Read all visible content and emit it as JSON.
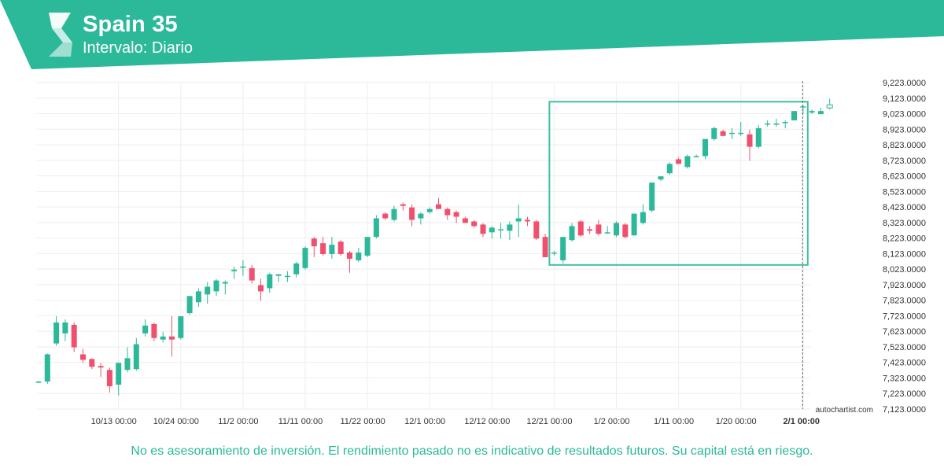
{
  "header": {
    "title": "Spain 35",
    "subtitle": "Intervalo: Diario",
    "brand_color": "#2bb99a",
    "logo_icon": "autochartist-logo-icon"
  },
  "colors": {
    "bull": "#2bb99a",
    "bear": "#f0506e",
    "grid": "#eeeeee",
    "pattern_box": "#3fbfa4",
    "text": "#333333"
  },
  "chart_data": {
    "type": "candlestick",
    "title": "Spain 35",
    "subtitle": "Intervalo: Diario",
    "ylim": [
      7123,
      9223
    ],
    "y_ticks": [
      "9,223.0000",
      "9,123.0000",
      "9,023.0000",
      "8,923.0000",
      "8,823.0000",
      "8,723.0000",
      "8,623.0000",
      "8,523.0000",
      "8,423.0000",
      "8,323.0000",
      "8,223.0000",
      "8,123.0000",
      "8,023.0000",
      "7,923.0000",
      "7,823.0000",
      "7,723.0000",
      "7,623.0000",
      "7,523.0000",
      "7,423.0000",
      "7,323.0000",
      "7,223.0000",
      "7,123.0000"
    ],
    "x_ticks": [
      {
        "label": "10/13 00:00",
        "index": 9
      },
      {
        "label": "10/24 00:00",
        "index": 16
      },
      {
        "label": "11/2 00:00",
        "index": 23
      },
      {
        "label": "11/11 00:00",
        "index": 30
      },
      {
        "label": "11/22 00:00",
        "index": 37
      },
      {
        "label": "12/1 00:00",
        "index": 44
      },
      {
        "label": "12/12 00:00",
        "index": 51
      },
      {
        "label": "12/21 00:00",
        "index": 58
      },
      {
        "label": "1/2 00:00",
        "index": 65
      },
      {
        "label": "1/11 00:00",
        "index": 72
      },
      {
        "label": "1/20 00:00",
        "index": 79
      },
      {
        "label": "2/1 00:00",
        "index": 86,
        "bold": true
      }
    ],
    "current_index": 86,
    "grid": true,
    "candles": [
      [
        7300,
        7305,
        7290,
        7300
      ],
      [
        7300,
        7480,
        7285,
        7475
      ],
      [
        7545,
        7720,
        7530,
        7680
      ],
      [
        7610,
        7700,
        7560,
        7680
      ],
      [
        7665,
        7680,
        7490,
        7520
      ],
      [
        7475,
        7510,
        7420,
        7440
      ],
      [
        7445,
        7450,
        7380,
        7395
      ],
      [
        7400,
        7420,
        7330,
        7390
      ],
      [
        7375,
        7390,
        7230,
        7270
      ],
      [
        7280,
        7420,
        7210,
        7420
      ],
      [
        7375,
        7520,
        7360,
        7450
      ],
      [
        7380,
        7580,
        7370,
        7540
      ],
      [
        7610,
        7700,
        7590,
        7660
      ],
      [
        7670,
        7680,
        7560,
        7580
      ],
      [
        7570,
        7620,
        7550,
        7590
      ],
      [
        7590,
        7720,
        7460,
        7570
      ],
      [
        7580,
        7720,
        7570,
        7720
      ],
      [
        7740,
        7850,
        7730,
        7850
      ],
      [
        7810,
        7900,
        7780,
        7880
      ],
      [
        7860,
        7940,
        7800,
        7910
      ],
      [
        7880,
        7960,
        7850,
        7950
      ],
      [
        7930,
        7950,
        7860,
        7940
      ],
      [
        8010,
        8040,
        7960,
        8020
      ],
      [
        8040,
        8080,
        7980,
        8040
      ],
      [
        8030,
        8050,
        7930,
        7950
      ],
      [
        7920,
        7960,
        7820,
        7880
      ],
      [
        7900,
        8000,
        7870,
        7990
      ],
      [
        7980,
        7990,
        7940,
        7990
      ],
      [
        7980,
        8010,
        7940,
        7980
      ],
      [
        7990,
        8070,
        7970,
        8060
      ],
      [
        8030,
        8170,
        8020,
        8160
      ],
      [
        8220,
        8230,
        8100,
        8170
      ],
      [
        8190,
        8230,
        8110,
        8120
      ],
      [
        8120,
        8230,
        8090,
        8180
      ],
      [
        8200,
        8210,
        8110,
        8120
      ],
      [
        8130,
        8140,
        8000,
        8090
      ],
      [
        8080,
        8160,
        8070,
        8130
      ],
      [
        8110,
        8230,
        8100,
        8230
      ],
      [
        8230,
        8370,
        8220,
        8350
      ],
      [
        8380,
        8390,
        8340,
        8350
      ],
      [
        8340,
        8430,
        8330,
        8410
      ],
      [
        8440,
        8450,
        8400,
        8430
      ],
      [
        8420,
        8440,
        8300,
        8340
      ],
      [
        8350,
        8390,
        8310,
        8380
      ],
      [
        8390,
        8420,
        8380,
        8410
      ],
      [
        8440,
        8480,
        8410,
        8410
      ],
      [
        8410,
        8420,
        8340,
        8370
      ],
      [
        8390,
        8400,
        8320,
        8360
      ],
      [
        8350,
        8360,
        8320,
        8320
      ],
      [
        8330,
        8340,
        8290,
        8300
      ],
      [
        8310,
        8320,
        8230,
        8250
      ],
      [
        8260,
        8300,
        8220,
        8290
      ],
      [
        8280,
        8320,
        8220,
        8280
      ],
      [
        8270,
        8330,
        8210,
        8310
      ],
      [
        8330,
        8440,
        8230,
        8350
      ],
      [
        8340,
        8360,
        8300,
        8330
      ],
      [
        8330,
        8340,
        8210,
        8220
      ],
      [
        8230,
        8250,
        8100,
        8100
      ],
      [
        8130,
        8140,
        8110,
        8130
      ],
      [
        8080,
        8230,
        8060,
        8230
      ],
      [
        8210,
        8320,
        8200,
        8300
      ],
      [
        8330,
        8340,
        8230,
        8240
      ],
      [
        8280,
        8300,
        8250,
        8270
      ],
      [
        8310,
        8340,
        8240,
        8250
      ],
      [
        8260,
        8300,
        8250,
        8260
      ],
      [
        8240,
        8330,
        8230,
        8320
      ],
      [
        8310,
        8320,
        8220,
        8230
      ],
      [
        8240,
        8380,
        8240,
        8380
      ],
      [
        8320,
        8440,
        8310,
        8390
      ],
      [
        8400,
        8580,
        8390,
        8580
      ],
      [
        8600,
        8620,
        8590,
        8620
      ],
      [
        8640,
        8710,
        8630,
        8700
      ],
      [
        8730,
        8740,
        8700,
        8700
      ],
      [
        8680,
        8760,
        8670,
        8750
      ],
      [
        8750,
        8760,
        8750,
        8750
      ],
      [
        8750,
        8860,
        8730,
        8860
      ],
      [
        8860,
        8940,
        8850,
        8930
      ],
      [
        8910,
        8920,
        8880,
        8880
      ],
      [
        8900,
        8930,
        8860,
        8900
      ],
      [
        8900,
        8970,
        8880,
        8900
      ],
      [
        8890,
        8920,
        8720,
        8810
      ],
      [
        8810,
        8950,
        8800,
        8930
      ],
      [
        8960,
        8980,
        8940,
        8960
      ],
      [
        8960,
        8990,
        8940,
        8960
      ],
      [
        8970,
        8980,
        8930,
        8970
      ],
      [
        8980,
        9040,
        8980,
        9040
      ],
      [
        9070,
        9080,
        9020,
        9070
      ],
      [
        9030,
        9050,
        9020,
        9040
      ],
      [
        9020,
        9060,
        9020,
        9040
      ],
      [
        9060,
        9120,
        9050,
        9080
      ]
    ],
    "pattern_box": {
      "start_index": 58,
      "end_index": 86,
      "high": 9100,
      "low": 8050
    }
  },
  "watermark": "autochartist.com",
  "disclaimer": "No es asesoramiento de inversión. El rendimiento pasado no es indicativo de resultados futuros. Su capital está en riesgo."
}
